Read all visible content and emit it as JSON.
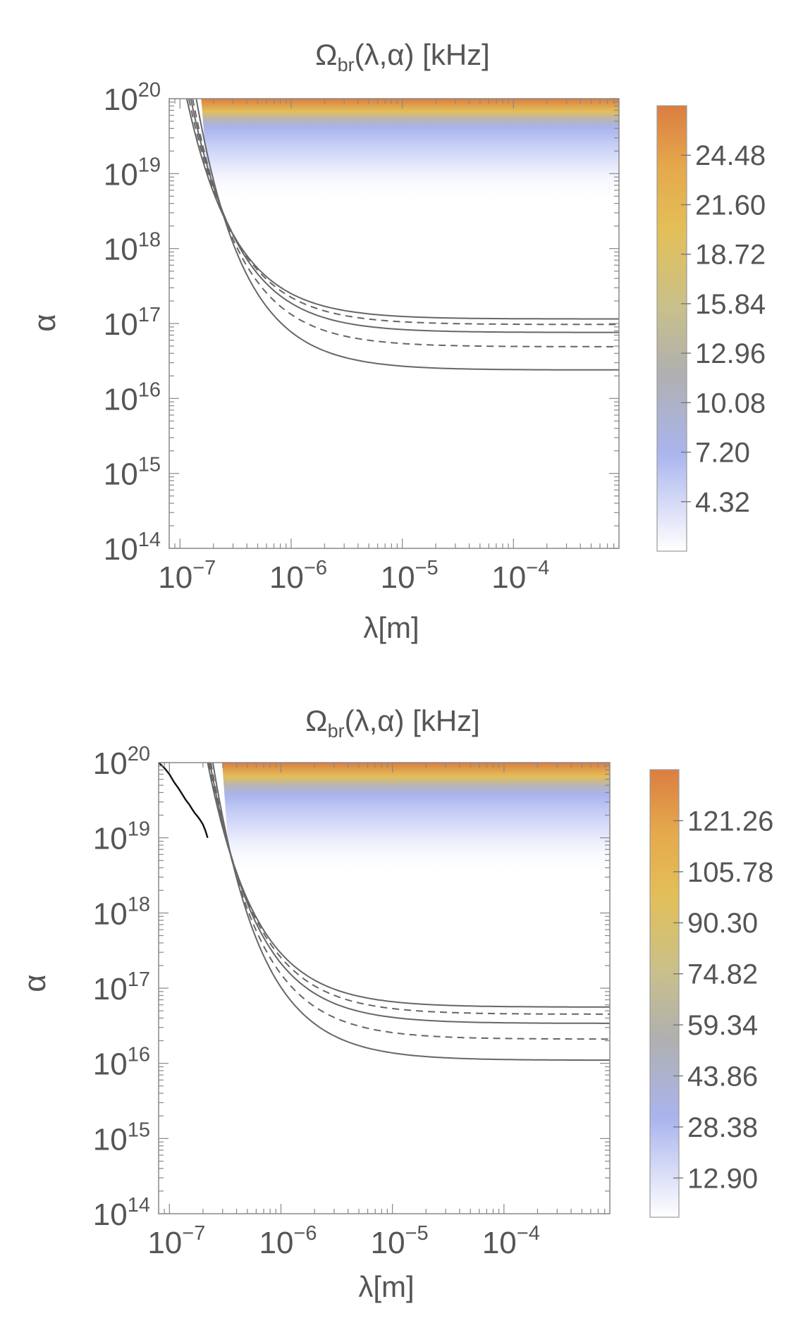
{
  "chart_data": [
    {
      "type": "heatmap",
      "title": "Ω_br(λ,α) [kHz]",
      "title_main": "Ω",
      "title_sub": "br",
      "title_rest": "(λ,α) [kHz]",
      "xlabel": "λ[m]",
      "ylabel": "α",
      "x_scale": "log",
      "y_scale": "log",
      "xlim": [
        8e-08,
        0.00089
      ],
      "ylim": [
        100000000000000.0,
        1e+20
      ],
      "x_ticks": [
        {
          "value": 1e-07,
          "base": "10",
          "exp": "−7"
        },
        {
          "value": 1e-06,
          "base": "10",
          "exp": "−6"
        },
        {
          "value": 1e-05,
          "base": "10",
          "exp": "−5"
        },
        {
          "value": 0.0001,
          "base": "10",
          "exp": "−4"
        }
      ],
      "y_ticks": [
        {
          "value": 100000000000000.0,
          "base": "10",
          "exp": "14"
        },
        {
          "value": 1000000000000000.0,
          "base": "10",
          "exp": "15"
        },
        {
          "value": 1e+16,
          "base": "10",
          "exp": "16"
        },
        {
          "value": 1e+17,
          "base": "10",
          "exp": "17"
        },
        {
          "value": 1e+18,
          "base": "10",
          "exp": "18"
        },
        {
          "value": 1e+19,
          "base": "10",
          "exp": "19"
        },
        {
          "value": 1e+20,
          "base": "10",
          "exp": "20"
        }
      ],
      "colorbar": {
        "min": 1.44,
        "max": 27.36,
        "labels": [
          "4.32",
          "7.20",
          "10.08",
          "12.96",
          "15.84",
          "18.72",
          "21.60",
          "24.48"
        ],
        "values": [
          4.32,
          7.2,
          10.08,
          12.96,
          15.84,
          18.72,
          21.6,
          24.48
        ]
      },
      "shaded_region": {
        "alpha_low": 4e+18,
        "alpha_high": 1e+20
      },
      "contours": [
        {
          "style": "solid",
          "alpha_plateau": 1.15e+17,
          "lambda_knee": 1.15e-07
        },
        {
          "style": "dashed",
          "alpha_plateau": 9.7e+16,
          "lambda_knee": 1.2e-07
        },
        {
          "style": "solid",
          "alpha_plateau": 7.6e+16,
          "lambda_knee": 1.25e-07
        },
        {
          "style": "dashed",
          "alpha_plateau": 4.9e+16,
          "lambda_knee": 1.3e-07
        },
        {
          "style": "solid",
          "alpha_plateau": 2.4e+16,
          "lambda_knee": 1.4e-07
        }
      ],
      "boundary_curve": null,
      "colors": {
        "low": "#ffffff",
        "blue": "#aab4ee",
        "grey": "#b0b0b0",
        "yellow": "#e3bf58",
        "orange": "#db7e41",
        "contour": "#666666"
      }
    },
    {
      "type": "heatmap",
      "title": "Ω_br(λ,α) [kHz]",
      "title_main": "Ω",
      "title_sub": "br",
      "title_rest": "(λ,α) [kHz]",
      "xlabel": "λ[m]",
      "ylabel": "α",
      "x_scale": "log",
      "y_scale": "log",
      "xlim": [
        8e-08,
        0.00089
      ],
      "ylim": [
        100000000000000.0,
        1e+20
      ],
      "x_ticks": [
        {
          "value": 1e-07,
          "base": "10",
          "exp": "−7"
        },
        {
          "value": 1e-06,
          "base": "10",
          "exp": "−6"
        },
        {
          "value": 1e-05,
          "base": "10",
          "exp": "−5"
        },
        {
          "value": 0.0001,
          "base": "10",
          "exp": "−4"
        }
      ],
      "y_ticks": [
        {
          "value": 100000000000000.0,
          "base": "10",
          "exp": "14"
        },
        {
          "value": 1000000000000000.0,
          "base": "10",
          "exp": "15"
        },
        {
          "value": 1e+16,
          "base": "10",
          "exp": "16"
        },
        {
          "value": 1e+17,
          "base": "10",
          "exp": "17"
        },
        {
          "value": 1e+18,
          "base": "10",
          "exp": "18"
        },
        {
          "value": 1e+19,
          "base": "10",
          "exp": "19"
        },
        {
          "value": 1e+20,
          "base": "10",
          "exp": "20"
        }
      ],
      "colorbar": {
        "min": 1.0,
        "max": 136.74,
        "labels": [
          "12.90",
          "28.38",
          "43.86",
          "59.34",
          "74.82",
          "90.30",
          "105.78",
          "121.26"
        ],
        "values": [
          12.9,
          28.38,
          43.86,
          59.34,
          74.82,
          90.3,
          105.78,
          121.26
        ]
      },
      "shaded_region": {
        "alpha_low": 3e+18,
        "alpha_high": 1e+20
      },
      "contours": [
        {
          "style": "solid",
          "alpha_plateau": 5.6e+16,
          "lambda_knee": 2.2e-07
        },
        {
          "style": "dashed",
          "alpha_plateau": 4.5e+16,
          "lambda_knee": 2.25e-07
        },
        {
          "style": "solid",
          "alpha_plateau": 3.4e+16,
          "lambda_knee": 2.3e-07
        },
        {
          "style": "dashed",
          "alpha_plateau": 2.1e+16,
          "lambda_knee": 2.35e-07
        },
        {
          "style": "solid",
          "alpha_plateau": 1.1e+16,
          "lambda_knee": 2.45e-07
        }
      ],
      "boundary_curve": {
        "color": "#111111",
        "points": [
          [
            8e-08,
            1e+20
          ],
          [
            9e-08,
            8.5e+19
          ],
          [
            1e-07,
            7e+19
          ],
          [
            1.1e-07,
            5.5e+19
          ],
          [
            1.2e-07,
            4.6e+19
          ],
          [
            1.3e-07,
            3.8e+19
          ],
          [
            1.4e-07,
            3.2e+19
          ],
          [
            1.5e-07,
            2.8e+19
          ],
          [
            1.6e-07,
            2.4e+19
          ],
          [
            1.7e-07,
            2.1e+19
          ],
          [
            1.8e-07,
            1.9e+19
          ],
          [
            1.9e-07,
            1.7e+19
          ],
          [
            2e-07,
            1.5e+19
          ],
          [
            2.1e-07,
            1.25e+19
          ],
          [
            2.2e-07,
            1e+19
          ]
        ]
      },
      "colors": {
        "low": "#ffffff",
        "blue": "#aab4ee",
        "grey": "#b0b0b0",
        "yellow": "#e3bf58",
        "orange": "#db7e41",
        "contour": "#666666"
      }
    }
  ]
}
